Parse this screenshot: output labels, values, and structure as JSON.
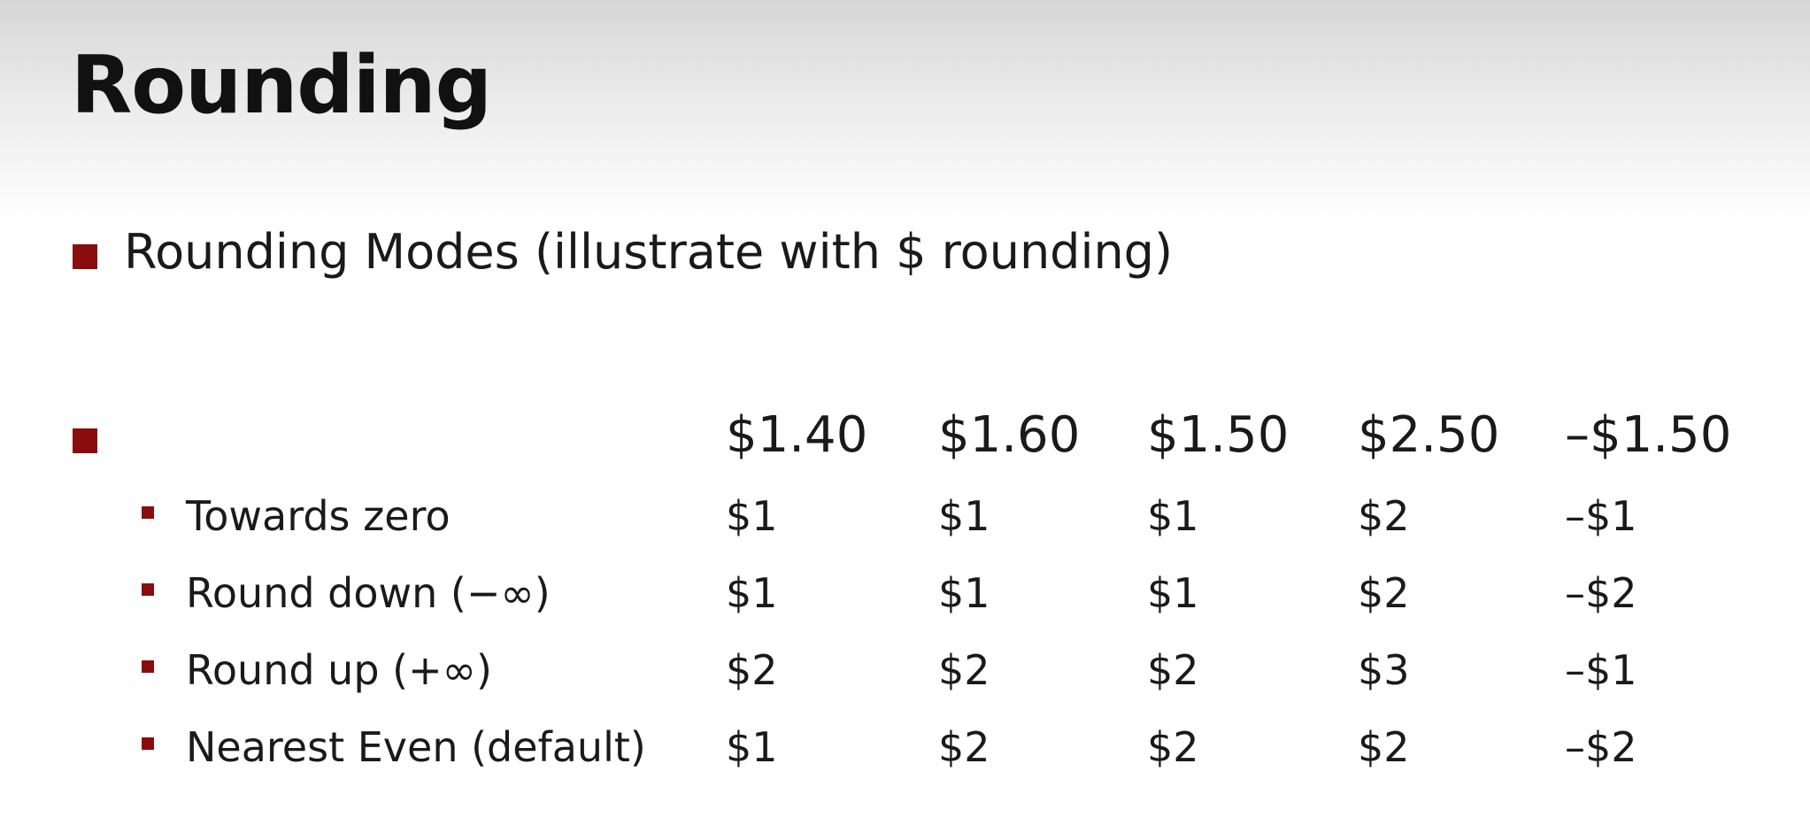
{
  "slide": {
    "title": "Rounding",
    "bullet_1": "Rounding Modes (illustrate with $ rounding)",
    "table": {
      "columns": [
        "$1.40",
        "$1.60",
        "$1.50",
        "$2.50",
        "–$1.50"
      ],
      "rows": [
        {
          "label": "Towards zero",
          "values": [
            "$1",
            "$1",
            "$1",
            "$2",
            "–$1"
          ]
        },
        {
          "label": "Round down (−∞)",
          "values": [
            "$1",
            "$1",
            "$1",
            "$2",
            "–$2"
          ]
        },
        {
          "label": "Round up (+∞)",
          "values": [
            "$2",
            "$2",
            "$2",
            "$3",
            "–$1"
          ]
        },
        {
          "label": "Nearest Even (default)",
          "values": [
            "$1",
            "$2",
            "$2",
            "$2",
            "–$2"
          ]
        }
      ]
    }
  },
  "colors": {
    "bullet": "#8b0c0c",
    "text": "#1a1a1a"
  }
}
